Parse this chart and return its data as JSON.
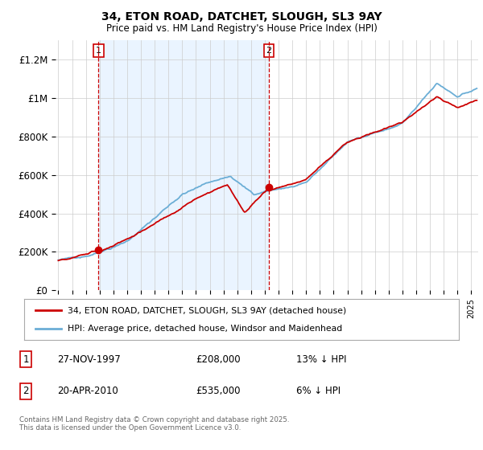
{
  "title_line1": "34, ETON ROAD, DATCHET, SLOUGH, SL3 9AY",
  "title_line2": "Price paid vs. HM Land Registry's House Price Index (HPI)",
  "ylabel_ticks": [
    "£0",
    "£200K",
    "£400K",
    "£600K",
    "£800K",
    "£1M",
    "£1.2M"
  ],
  "ytick_values": [
    0,
    200000,
    400000,
    600000,
    800000,
    1000000,
    1200000
  ],
  "ylim": [
    0,
    1300000
  ],
  "xlim_start": 1994.8,
  "xlim_end": 2025.5,
  "purchase1_year": 1997.92,
  "purchase1_price": 208000,
  "purchase1_num": "1",
  "purchase2_year": 2010.3,
  "purchase2_price": 535000,
  "purchase2_num": "2",
  "legend_line1": "34, ETON ROAD, DATCHET, SLOUGH, SL3 9AY (detached house)",
  "legend_line2": "HPI: Average price, detached house, Windsor and Maidenhead",
  "footer": "Contains HM Land Registry data © Crown copyright and database right 2025.\nThis data is licensed under the Open Government Licence v3.0.",
  "hpi_color": "#6baed6",
  "price_color": "#cc0000",
  "marker_box_color": "#cc0000",
  "background_color": "#ffffff",
  "grid_color": "#cccccc",
  "shade_color": "#ddeeff",
  "table_row1": [
    "1",
    "27-NOV-1997",
    "£208,000",
    "13% ↓ HPI"
  ],
  "table_row2": [
    "2",
    "20-APR-2010",
    "£535,000",
    "6% ↓ HPI"
  ]
}
